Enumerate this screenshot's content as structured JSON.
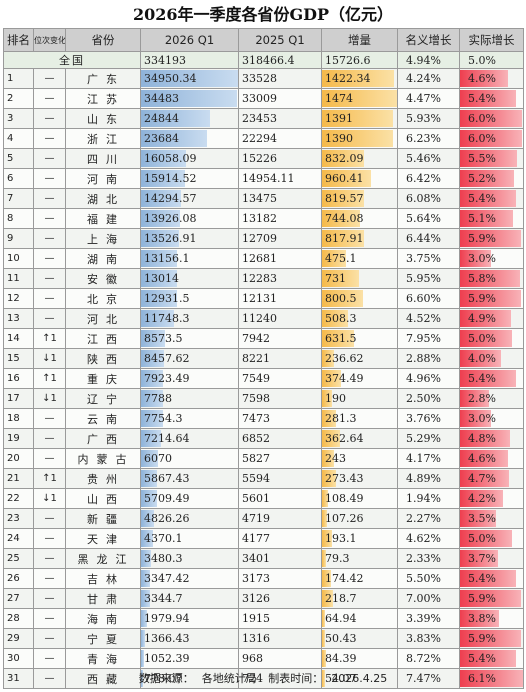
{
  "title": "2026年一季度各省份GDP（亿元）",
  "headers": {
    "rank": "排名",
    "change": "位次变化",
    "province": "省份",
    "q1_2026": "2026 Q1",
    "q1_2025": "2025 Q1",
    "increase": "增量",
    "nominal": "名义增长",
    "real": "实际增长"
  },
  "total": {
    "name": "全国",
    "q1_2026": "334193",
    "q1_2025": "318466.4",
    "increase": "15726.6",
    "nominal": "4.94%",
    "real": "5.0%"
  },
  "rows": [
    {
      "rank": "1",
      "change": "—",
      "province": "广东",
      "q1_2026": "34950.34",
      "q1_2025": "33528",
      "increase": "1422.34",
      "nominal": "4.24%",
      "real": "4.6%"
    },
    {
      "rank": "2",
      "change": "—",
      "province": "江苏",
      "q1_2026": "34483",
      "q1_2025": "33009",
      "increase": "1474",
      "nominal": "4.47%",
      "real": "5.4%"
    },
    {
      "rank": "3",
      "change": "—",
      "province": "山东",
      "q1_2026": "24844",
      "q1_2025": "23453",
      "increase": "1391",
      "nominal": "5.93%",
      "real": "6.0%"
    },
    {
      "rank": "4",
      "change": "—",
      "province": "浙江",
      "q1_2026": "23684",
      "q1_2025": "22294",
      "increase": "1390",
      "nominal": "6.23%",
      "real": "6.0%"
    },
    {
      "rank": "5",
      "change": "—",
      "province": "四川",
      "q1_2026": "16058.09",
      "q1_2025": "15226",
      "increase": "832.09",
      "nominal": "5.46%",
      "real": "5.5%"
    },
    {
      "rank": "6",
      "change": "—",
      "province": "河南",
      "q1_2026": "15914.52",
      "q1_2025": "14954.11",
      "increase": "960.41",
      "nominal": "6.42%",
      "real": "5.2%"
    },
    {
      "rank": "7",
      "change": "—",
      "province": "湖北",
      "q1_2026": "14294.57",
      "q1_2025": "13475",
      "increase": "819.57",
      "nominal": "6.08%",
      "real": "5.4%"
    },
    {
      "rank": "8",
      "change": "—",
      "province": "福建",
      "q1_2026": "13926.08",
      "q1_2025": "13182",
      "increase": "744.08",
      "nominal": "5.64%",
      "real": "5.1%"
    },
    {
      "rank": "9",
      "change": "—",
      "province": "上海",
      "q1_2026": "13526.91",
      "q1_2025": "12709",
      "increase": "817.91",
      "nominal": "6.44%",
      "real": "5.9%"
    },
    {
      "rank": "10",
      "change": "—",
      "province": "湖南",
      "q1_2026": "13156.1",
      "q1_2025": "12681",
      "increase": "475.1",
      "nominal": "3.75%",
      "real": "3.0%"
    },
    {
      "rank": "11",
      "change": "—",
      "province": "安徽",
      "q1_2026": "13014",
      "q1_2025": "12283",
      "increase": "731",
      "nominal": "5.95%",
      "real": "5.8%"
    },
    {
      "rank": "12",
      "change": "—",
      "province": "北京",
      "q1_2026": "12931.5",
      "q1_2025": "12131",
      "increase": "800.5",
      "nominal": "6.60%",
      "real": "5.9%"
    },
    {
      "rank": "13",
      "change": "—",
      "province": "河北",
      "q1_2026": "11748.3",
      "q1_2025": "11240",
      "increase": "508.3",
      "nominal": "4.52%",
      "real": "4.9%"
    },
    {
      "rank": "14",
      "change": "↑1",
      "province": "江西",
      "q1_2026": "8573.5",
      "q1_2025": "7942",
      "increase": "631.5",
      "nominal": "7.95%",
      "real": "5.0%"
    },
    {
      "rank": "15",
      "change": "↓1",
      "province": "陕西",
      "q1_2026": "8457.62",
      "q1_2025": "8221",
      "increase": "236.62",
      "nominal": "2.88%",
      "real": "4.0%"
    },
    {
      "rank": "16",
      "change": "↑1",
      "province": "重庆",
      "q1_2026": "7923.49",
      "q1_2025": "7549",
      "increase": "374.49",
      "nominal": "4.96%",
      "real": "5.4%"
    },
    {
      "rank": "17",
      "change": "↓1",
      "province": "辽宁",
      "q1_2026": "7788",
      "q1_2025": "7598",
      "increase": "190",
      "nominal": "2.50%",
      "real": "2.8%"
    },
    {
      "rank": "18",
      "change": "—",
      "province": "云南",
      "q1_2026": "7754.3",
      "q1_2025": "7473",
      "increase": "281.3",
      "nominal": "3.76%",
      "real": "3.0%"
    },
    {
      "rank": "19",
      "change": "—",
      "province": "广西",
      "q1_2026": "7214.64",
      "q1_2025": "6852",
      "increase": "362.64",
      "nominal": "5.29%",
      "real": "4.8%"
    },
    {
      "rank": "20",
      "change": "—",
      "province": "内蒙古",
      "q1_2026": "6070",
      "q1_2025": "5827",
      "increase": "243",
      "nominal": "4.17%",
      "real": "4.6%"
    },
    {
      "rank": "21",
      "change": "↑1",
      "province": "贵州",
      "q1_2026": "5867.43",
      "q1_2025": "5594",
      "increase": "273.43",
      "nominal": "4.89%",
      "real": "4.7%"
    },
    {
      "rank": "22",
      "change": "↓1",
      "province": "山西",
      "q1_2026": "5709.49",
      "q1_2025": "5601",
      "increase": "108.49",
      "nominal": "1.94%",
      "real": "4.2%"
    },
    {
      "rank": "23",
      "change": "—",
      "province": "新疆",
      "q1_2026": "4826.26",
      "q1_2025": "4719",
      "increase": "107.26",
      "nominal": "2.27%",
      "real": "3.5%"
    },
    {
      "rank": "24",
      "change": "—",
      "province": "天津",
      "q1_2026": "4370.1",
      "q1_2025": "4177",
      "increase": "193.1",
      "nominal": "4.62%",
      "real": "5.0%"
    },
    {
      "rank": "25",
      "change": "—",
      "province": "黑龙江",
      "q1_2026": "3480.3",
      "q1_2025": "3401",
      "increase": "79.3",
      "nominal": "2.33%",
      "real": "3.7%"
    },
    {
      "rank": "26",
      "change": "—",
      "province": "吉林",
      "q1_2026": "3347.42",
      "q1_2025": "3173",
      "increase": "174.42",
      "nominal": "5.50%",
      "real": "5.4%"
    },
    {
      "rank": "27",
      "change": "—",
      "province": "甘肃",
      "q1_2026": "3344.7",
      "q1_2025": "3126",
      "increase": "218.7",
      "nominal": "7.00%",
      "real": "5.9%"
    },
    {
      "rank": "28",
      "change": "—",
      "province": "海南",
      "q1_2026": "1979.94",
      "q1_2025": "1915",
      "increase": "64.94",
      "nominal": "3.39%",
      "real": "3.8%"
    },
    {
      "rank": "29",
      "change": "—",
      "province": "宁夏",
      "q1_2026": "1366.43",
      "q1_2025": "1316",
      "increase": "50.43",
      "nominal": "3.83%",
      "real": "5.9%"
    },
    {
      "rank": "30",
      "change": "—",
      "province": "青海",
      "q1_2026": "1052.39",
      "q1_2025": "968",
      "increase": "84.39",
      "nominal": "8.72%",
      "real": "5.4%"
    },
    {
      "rank": "31",
      "change": "—",
      "province": "西藏",
      "q1_2026": "778.07",
      "q1_2025": "724",
      "increase": "54.07",
      "nominal": "7.47%",
      "real": "6.1%"
    }
  ],
  "footer": {
    "source_label": "数据来源：",
    "source": "各地统计局",
    "date_label": "制表时间：",
    "date": "2026.4.25"
  },
  "colors": {
    "header_bg": "#cfcfcf",
    "total_bg": "#e6efe4",
    "bar_q26": "#8fb3d9",
    "bar_increase": "#f5b94a",
    "bar_real": "#ee3e4f"
  }
}
